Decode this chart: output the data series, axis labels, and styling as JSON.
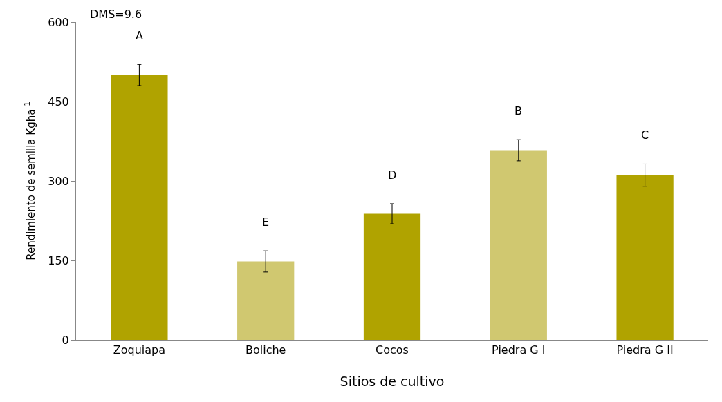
{
  "chart_data": {
    "type": "bar",
    "xlabel": "Sitios de cultivo",
    "ylabel": "Rendimiento de semilla Kgha$^{-1}$",
    "categories": [
      "Zoquiapa",
      "Boliche",
      "Cocos",
      "Piedra G I",
      "Piedra G II"
    ],
    "values": [
      500,
      148,
      238,
      358,
      311
    ],
    "colors": [
      "#b0a300",
      "#d0c870",
      "#b0a300",
      "#d0c870",
      "#b0a300"
    ],
    "errors": [
      20,
      20,
      19,
      20,
      21
    ],
    "ylim": [
      0,
      600
    ],
    "yticks": [
      0,
      150,
      300,
      450,
      600
    ],
    "value_labels": [
      "A",
      "E",
      "D",
      "B",
      "C"
    ],
    "annotations": [
      "DMS=9.6"
    ]
  }
}
